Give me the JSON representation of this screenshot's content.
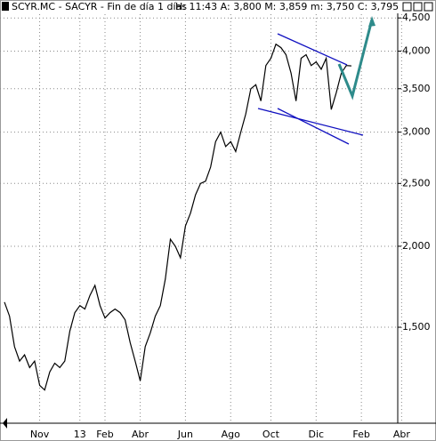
{
  "chart_data": {
    "type": "line",
    "title": "SCYR.MC - SACYR - Fin de día 1 días",
    "subtitle": "H: 11:43  A: 3,800  M: 3,859  m: 3,750  C: 3,795",
    "categories": [
      null,
      null,
      null,
      null,
      null,
      null,
      null,
      "Nov",
      null,
      null,
      null,
      null,
      null,
      null,
      null,
      "13",
      null,
      null,
      null,
      null,
      "Feb",
      null,
      null,
      null,
      null,
      null,
      null,
      "Abr",
      null,
      null,
      null,
      null,
      null,
      null,
      null,
      null,
      "Jun",
      null,
      null,
      null,
      null,
      null,
      null,
      null,
      null,
      "Ago",
      null,
      null,
      null,
      null,
      null,
      null,
      null,
      "Oct",
      null,
      null,
      null,
      null,
      null,
      null,
      null,
      null,
      "Dic",
      null,
      null,
      null,
      null,
      null,
      null,
      null,
      null,
      "Feb",
      null,
      null,
      null,
      null,
      null,
      null,
      null,
      "Abr"
    ],
    "series": [
      {
        "name": "SCYR.MC",
        "color": "#000000",
        "values": [
          1640,
          1560,
          1400,
          1330,
          1360,
          1300,
          1330,
          1220,
          1200,
          1280,
          1320,
          1300,
          1330,
          1480,
          1580,
          1620,
          1600,
          1680,
          1740,
          1620,
          1550,
          1580,
          1600,
          1580,
          1540,
          1420,
          1330,
          1240,
          1400,
          1470,
          1560,
          1620,
          1780,
          2050,
          2000,
          1920,
          2150,
          2250,
          2400,
          2500,
          2520,
          2650,
          2900,
          3000,
          2850,
          2900,
          2800,
          3000,
          3200,
          3500,
          3550,
          3350,
          3800,
          3900,
          4100,
          4050,
          3950,
          3700,
          3350,
          3900,
          3950,
          3800,
          3850,
          3750,
          3900,
          3250,
          3450,
          3700,
          3800,
          3795,
          null,
          null,
          null,
          null,
          null,
          null,
          null,
          null,
          null,
          null
        ]
      }
    ],
    "ylim": [
      1070,
      4560
    ],
    "yticks": [
      {
        "value": 1500,
        "label": "1,500"
      },
      {
        "value": 2000,
        "label": "2,000"
      },
      {
        "value": 2500,
        "label": "2,500"
      },
      {
        "value": 3000,
        "label": "3,000"
      },
      {
        "value": 3500,
        "label": "3,500"
      },
      {
        "value": 4000,
        "label": "4,000"
      },
      {
        "value": 4500,
        "label": "4,500"
      }
    ],
    "log_scale": true,
    "grid": true
  }
}
